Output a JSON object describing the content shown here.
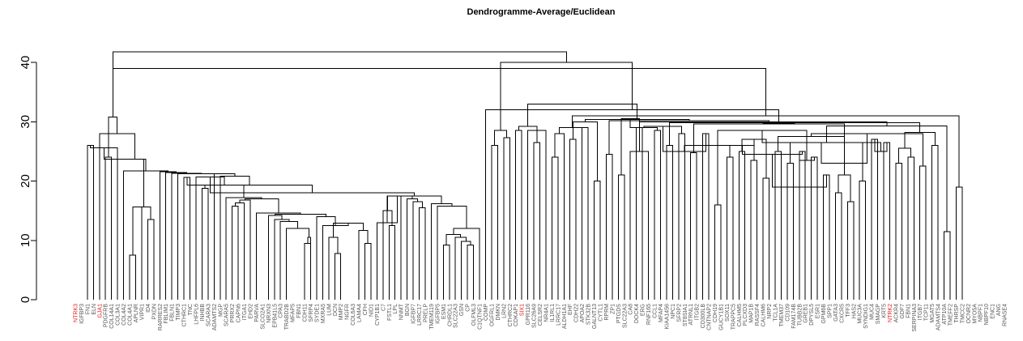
{
  "chart_data": {
    "type": "dendrogram",
    "title": "Dendrogramme-Average/Euclidean",
    "xlabel": "",
    "ylabel": "",
    "ylim": [
      0,
      42
    ],
    "y_ticks": [
      0,
      10,
      20,
      30,
      40
    ],
    "grid": false,
    "highlight_color": "#e41a1c",
    "label_color": "#555555",
    "leaves": [
      {
        "label": "NTRK3",
        "highlight": true
      },
      {
        "label": "IGFBP3"
      },
      {
        "label": "FN1"
      },
      {
        "label": "ELN"
      },
      {
        "label": "GJA1",
        "highlight": true
      },
      {
        "label": "PDGFRB"
      },
      {
        "label": "COL14A1"
      },
      {
        "label": "COL3A1"
      },
      {
        "label": "COL4A2"
      },
      {
        "label": "COL4A1"
      },
      {
        "label": "APLNR"
      },
      {
        "label": "VIPR1"
      },
      {
        "label": "ID4"
      },
      {
        "label": "PXDN"
      },
      {
        "label": "RARRES2"
      },
      {
        "label": "FBLIM1"
      },
      {
        "label": "FBLN1"
      },
      {
        "label": "TIMP3"
      },
      {
        "label": "CTHRC1"
      },
      {
        "label": "TNC"
      },
      {
        "label": "LHFPL6"
      },
      {
        "label": "INHBB"
      },
      {
        "label": "SCARA3"
      },
      {
        "label": "ADAMTS2"
      },
      {
        "label": "MGP"
      },
      {
        "label": "SCARA5"
      },
      {
        "label": "PRRX2"
      },
      {
        "label": "CAPN6"
      },
      {
        "label": "ITGA1"
      },
      {
        "label": "EHD2"
      },
      {
        "label": "PARVA"
      },
      {
        "label": "SLCO2A1"
      },
      {
        "label": "NRXN3"
      },
      {
        "label": "EPB41L5"
      },
      {
        "label": "CPA3"
      },
      {
        "label": "TRABD2B"
      },
      {
        "label": "MFAP5"
      },
      {
        "label": "FBN1"
      },
      {
        "label": "CDH11"
      },
      {
        "label": "SFRP4"
      },
      {
        "label": "SYDE1"
      },
      {
        "label": "MXRA5"
      },
      {
        "label": "LUM"
      },
      {
        "label": "DCN"
      },
      {
        "label": "MMP2"
      },
      {
        "label": "NGFR"
      },
      {
        "label": "COL6A3"
      },
      {
        "label": "LAMA4"
      },
      {
        "label": "CFH"
      },
      {
        "label": "NID1"
      },
      {
        "label": "CYP1B1"
      },
      {
        "label": "C7"
      },
      {
        "label": "FSTL1"
      },
      {
        "label": "LPL"
      },
      {
        "label": "NNMT"
      },
      {
        "label": "BGN"
      },
      {
        "label": "IGFBP7"
      },
      {
        "label": "LRRC17"
      },
      {
        "label": "PRELP"
      },
      {
        "label": "TMEM119"
      },
      {
        "label": "IGFBP5"
      },
      {
        "label": "ESM1"
      },
      {
        "label": "CHRDL1"
      },
      {
        "label": "SLC22A3"
      },
      {
        "label": "GSN"
      },
      {
        "label": "CP"
      },
      {
        "label": "OLFML3"
      },
      {
        "label": "C1QTNF1"
      },
      {
        "label": "COMP"
      },
      {
        "label": "OGFRL1"
      },
      {
        "label": "DMKN"
      },
      {
        "label": "LRN2"
      },
      {
        "label": "CTHRC2"
      },
      {
        "label": "CDKAP1"
      },
      {
        "label": "SIX1",
        "highlight": true
      },
      {
        "label": "GPR116"
      },
      {
        "label": "SLC26A9"
      },
      {
        "label": "CELSR2"
      },
      {
        "label": "NR4A1"
      },
      {
        "label": "IL1RL1"
      },
      {
        "label": "LRRC17"
      },
      {
        "label": "ALDH1A1"
      },
      {
        "label": "EHF"
      },
      {
        "label": "CDH22"
      },
      {
        "label": "APOA2"
      },
      {
        "label": "STK32B"
      },
      {
        "label": "GALNT13"
      },
      {
        "label": "CYTL1"
      },
      {
        "label": "RPRM"
      },
      {
        "label": "ZP1"
      },
      {
        "label": "PTGDS"
      },
      {
        "label": "SLC22A3"
      },
      {
        "label": "CA8"
      },
      {
        "label": "DOCK4"
      },
      {
        "label": "ERG"
      },
      {
        "label": "RNF165"
      },
      {
        "label": "CCL1"
      },
      {
        "label": "MFAP4"
      },
      {
        "label": "KIAA1456"
      },
      {
        "label": "NPC1"
      },
      {
        "label": "SFRP2"
      },
      {
        "label": "ST8SIA1"
      },
      {
        "label": "ATRNL1"
      },
      {
        "label": "ITGB2"
      },
      {
        "label": "CD300LB"
      },
      {
        "label": "CNTNAP2"
      },
      {
        "label": "CDH19"
      },
      {
        "label": "GUCY1B1"
      },
      {
        "label": "SOX11"
      },
      {
        "label": "TRAPPC5"
      },
      {
        "label": "CALHM5"
      },
      {
        "label": "PLCXD3"
      },
      {
        "label": "MAP1B"
      },
      {
        "label": "RASSF4"
      },
      {
        "label": "CALHM6"
      },
      {
        "label": "NRP2"
      },
      {
        "label": "TCL1A"
      },
      {
        "label": "TMEM37"
      },
      {
        "label": "CD109"
      },
      {
        "label": "FAM174B"
      },
      {
        "label": "TUBB2B"
      },
      {
        "label": "GREB1"
      },
      {
        "label": "DPYSL5"
      },
      {
        "label": "ESR1"
      },
      {
        "label": "GPM6B"
      },
      {
        "label": "SPP1"
      },
      {
        "label": "GATA3"
      },
      {
        "label": "CXCR5"
      },
      {
        "label": "TFF3"
      },
      {
        "label": "HAS2"
      },
      {
        "label": "MUC3A"
      },
      {
        "label": "SYNDIG1"
      },
      {
        "label": "MUC4"
      },
      {
        "label": "SMAGP"
      },
      {
        "label": "KRT5"
      },
      {
        "label": "NTRK2",
        "highlight": true
      },
      {
        "label": "ACKR4"
      },
      {
        "label": "GDF7"
      },
      {
        "label": "FBN1"
      },
      {
        "label": "SERPINA3"
      },
      {
        "label": "ITGB7"
      },
      {
        "label": "TCP11"
      },
      {
        "label": "MGAT5"
      },
      {
        "label": "ADAMTS4"
      },
      {
        "label": "ATP10A"
      },
      {
        "label": "TMEFF2"
      },
      {
        "label": "THRSP"
      },
      {
        "label": "TMCC2"
      },
      {
        "label": "OCNR2"
      },
      {
        "label": "MYO5A"
      },
      {
        "label": "NBPF1"
      },
      {
        "label": "NBPF10"
      },
      {
        "label": "ENC1"
      },
      {
        "label": "ANG"
      },
      {
        "label": "RNASE4"
      }
    ],
    "merges": [
      [
        -3,
        -4,
        26
      ],
      [
        -6,
        -7,
        24
      ],
      [
        1,
        -8,
        25.6
      ],
      [
        -10,
        -11,
        7.5
      ],
      [
        -12,
        4,
        15.6
      ],
      [
        -13,
        -14,
        13.5
      ],
      [
        5,
        6,
        15.6
      ],
      [
        3,
        7,
        23.7
      ],
      [
        -22,
        -23,
        18.8
      ],
      [
        -19,
        -20,
        20.6
      ],
      [
        -39,
        -40,
        9.5
      ],
      [
        -40,
        11,
        10.5
      ],
      [
        -36,
        12,
        12
      ],
      [
        -35,
        13,
        13.2
      ],
      [
        -34,
        14,
        13.5
      ],
      [
        -33,
        15,
        14.2
      ],
      [
        -44,
        -45,
        7.8
      ],
      [
        -43,
        17,
        10.5
      ],
      [
        -49,
        -50,
        9.5
      ],
      [
        -48,
        19,
        11.7
      ],
      [
        18,
        20,
        12.9
      ],
      [
        -42,
        21,
        12.5
      ],
      [
        -41,
        22,
        14
      ],
      [
        16,
        23,
        14.4
      ],
      [
        -31,
        24,
        14.6
      ],
      [
        -27,
        -28,
        15.8
      ],
      [
        26,
        -29,
        16.3
      ],
      [
        -30,
        27,
        16.8
      ],
      [
        28,
        25,
        17
      ],
      [
        -26,
        29,
        17.2
      ],
      [
        9,
        30,
        19.3
      ],
      [
        -21,
        31,
        20.7
      ],
      [
        -58,
        -59,
        15.5
      ],
      [
        -57,
        33,
        16.5
      ],
      [
        -56,
        34,
        17
      ],
      [
        -55,
        35,
        17.5
      ],
      [
        -53,
        -54,
        12.5
      ],
      [
        -52,
        37,
        15
      ],
      [
        36,
        38,
        17.5
      ],
      [
        -51,
        39,
        13
      ],
      [
        -66,
        -67,
        9.2
      ],
      [
        -65,
        41,
        9.8
      ],
      [
        -64,
        42,
        10.5
      ],
      [
        -63,
        -62,
        9.2
      ],
      [
        43,
        44,
        11
      ],
      [
        -68,
        45,
        12
      ],
      [
        -61,
        46,
        15.8
      ],
      [
        -60,
        47,
        16.2
      ],
      [
        40,
        48,
        17.5
      ],
      [
        32,
        49,
        18
      ],
      [
        50,
        10,
        19.3
      ],
      [
        -25,
        51,
        20.8
      ],
      [
        -24,
        52,
        21.2
      ],
      [
        -18,
        53,
        21.2
      ],
      [
        -17,
        54,
        21.3
      ],
      [
        -16,
        55,
        21.4
      ],
      [
        -15,
        56,
        21.6
      ],
      [
        -9,
        57,
        21.7
      ],
      [
        8,
        58,
        23.7
      ],
      [
        -5,
        59,
        28
      ],
      [
        2,
        60,
        30.8
      ],
      [
        -70,
        -71,
        26
      ],
      [
        -72,
        -73,
        27.3
      ],
      [
        62,
        63,
        28.5
      ],
      [
        -74,
        -75,
        28.5
      ],
      [
        -77,
        -78,
        26.5
      ],
      [
        -76,
        -79,
        28.5
      ],
      [
        66,
        67,
        29
      ],
      [
        65,
        68,
        29.2
      ],
      [
        -80,
        -81,
        24
      ],
      [
        -83,
        -84,
        27
      ],
      [
        -82,
        70,
        28
      ],
      [
        -85,
        -86,
        29
      ],
      [
        -87,
        -88,
        20
      ],
      [
        72,
        73,
        29
      ],
      [
        71,
        74,
        30
      ],
      [
        -89,
        -90,
        24.5
      ],
      [
        -91,
        -92,
        21
      ],
      [
        -94,
        -95,
        29
      ],
      [
        -93,
        -96,
        25
      ],
      [
        78,
        79,
        30.5
      ],
      [
        -97,
        -98,
        28.5
      ],
      [
        -99,
        -100,
        26
      ],
      [
        81,
        82,
        29
      ],
      [
        -101,
        -102,
        28
      ],
      [
        -103,
        -104,
        24.8
      ],
      [
        84,
        85,
        29.2
      ],
      [
        -105,
        -106,
        28
      ],
      [
        -107,
        -108,
        16
      ],
      [
        87,
        88,
        25
      ],
      [
        -109,
        -110,
        24
      ],
      [
        -111,
        -112,
        25
      ],
      [
        -113,
        -114,
        23.5
      ],
      [
        90,
        91,
        26
      ],
      [
        -115,
        -116,
        20.5
      ],
      [
        -117,
        -118,
        25
      ],
      [
        93,
        94,
        26
      ],
      [
        92,
        95,
        27
      ],
      [
        -119,
        -120,
        23
      ],
      [
        -121,
        -122,
        25
      ],
      [
        97,
        98,
        26
      ],
      [
        -123,
        -124,
        24
      ],
      [
        -125,
        -126,
        21
      ],
      [
        100,
        101,
        24.5
      ],
      [
        -127,
        -128,
        18
      ],
      [
        -129,
        -130,
        16.5
      ],
      [
        103,
        104,
        19
      ],
      [
        -131,
        -132,
        20
      ],
      [
        105,
        106,
        21
      ],
      [
        102,
        107,
        23.5
      ],
      [
        99,
        108,
        26.5
      ],
      [
        96,
        109,
        27.5
      ],
      [
        89,
        110,
        28.5
      ],
      [
        -133,
        -134,
        27
      ],
      [
        -135,
        -136,
        26.5
      ],
      [
        -137,
        -138,
        23
      ],
      [
        -139,
        -140,
        24
      ],
      [
        114,
        115,
        25
      ],
      [
        -141,
        -142,
        22.5
      ],
      [
        116,
        117,
        25.5
      ],
      [
        113,
        118,
        26.5
      ],
      [
        112,
        119,
        28
      ],
      [
        -143,
        -144,
        26
      ],
      [
        -145,
        -146,
        11.5
      ],
      [
        121,
        122,
        23
      ],
      [
        120,
        123,
        28.2
      ],
      [
        111,
        124,
        29.3
      ],
      [
        86,
        125,
        29.6
      ],
      [
        83,
        126,
        29.8
      ],
      [
        80,
        127,
        30
      ],
      [
        77,
        128,
        30.2
      ],
      [
        -147,
        -148,
        19
      ],
      [
        129,
        130,
        29.7
      ],
      [
        76,
        131,
        30.4
      ],
      [
        75,
        132,
        31
      ],
      [
        -69,
        133,
        32
      ],
      [
        69,
        134,
        33
      ],
      [
        61,
        135,
        39
      ],
      [
        64,
        136,
        40
      ],
      [
        0,
        0,
        0
      ]
    ]
  }
}
